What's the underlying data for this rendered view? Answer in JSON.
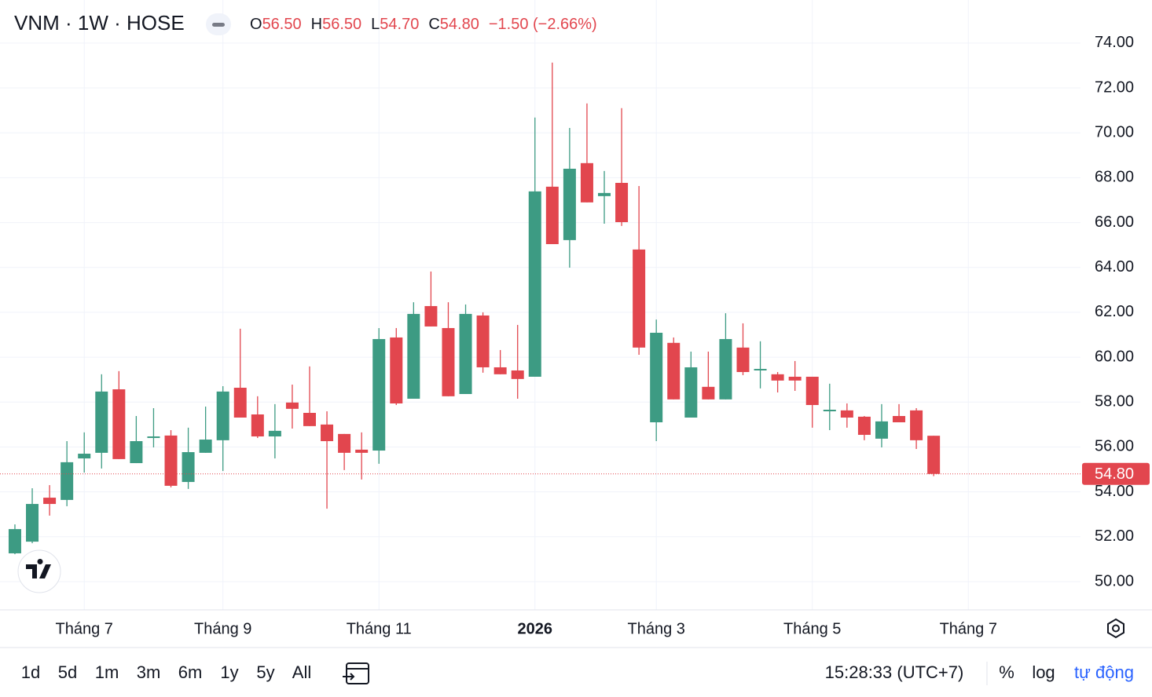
{
  "chart_data": {
    "type": "candlestick",
    "title": "VNM · 1W · HOSE",
    "ohlc_legend": [
      {
        "label": "O",
        "value": "56.50"
      },
      {
        "label": "H",
        "value": "56.50"
      },
      {
        "label": "L",
        "value": "54.70"
      },
      {
        "label": "C",
        "value": "54.80"
      }
    ],
    "change": "−1.50 (−2.66%)",
    "up_color": "#3d9b83",
    "down_color": "#e2464e",
    "open": [
      51.26,
      51.78,
      53.74,
      53.64,
      55.49,
      55.74,
      58.57,
      55.28,
      56.4,
      56.51,
      54.44,
      55.74,
      56.3,
      58.64,
      57.45,
      56.47,
      57.98,
      57.52,
      57.0,
      56.58,
      55.88,
      55.84,
      60.88,
      58.15,
      62.28,
      61.3,
      58.36,
      61.86,
      59.55,
      59.41,
      59.13,
      67.6,
      65.22,
      68.65,
      67.18,
      67.77,
      64.8,
      57.1,
      60.64,
      57.31,
      58.68,
      58.12,
      60.43,
      59.41,
      59.24,
      59.13,
      59.13,
      57.59,
      57.63,
      57.35,
      56.37,
      57.38,
      57.63,
      56.5
    ],
    "high": [
      52.55,
      54.16,
      54.3,
      56.26,
      56.65,
      59.24,
      59.38,
      57.38,
      57.73,
      56.75,
      56.86,
      57.8,
      58.71,
      61.27,
      58.26,
      57.91,
      58.78,
      59.59,
      57.59,
      56.58,
      56.65,
      61.3,
      61.3,
      62.45,
      63.82,
      62.45,
      62.35,
      62.0,
      60.32,
      61.44,
      70.68,
      73.13,
      70.22,
      71.31,
      68.3,
      71.1,
      67.63,
      61.68,
      60.88,
      60.25,
      60.25,
      61.96,
      61.51,
      60.71,
      59.34,
      59.83,
      59.13,
      58.82,
      57.94,
      57.38,
      57.91,
      57.91,
      57.73,
      56.5
    ],
    "low": [
      51.22,
      51.71,
      52.94,
      53.36,
      54.86,
      55.04,
      55.46,
      55.28,
      55.98,
      54.2,
      54.13,
      55.74,
      54.93,
      57.31,
      56.4,
      55.49,
      56.82,
      56.93,
      53.25,
      54.97,
      54.55,
      55.25,
      57.87,
      58.15,
      61.37,
      58.26,
      58.36,
      59.31,
      59.24,
      58.15,
      59.13,
      65.04,
      63.99,
      66.9,
      65.95,
      65.85,
      60.11,
      56.26,
      58.12,
      57.31,
      58.12,
      58.12,
      59.2,
      58.61,
      58.43,
      58.5,
      56.86,
      56.75,
      56.86,
      56.3,
      55.98,
      57.1,
      55.91,
      54.7
    ],
    "close": [
      52.34,
      53.46,
      53.46,
      55.32,
      55.7,
      58.47,
      55.46,
      56.26,
      56.47,
      54.27,
      55.77,
      56.33,
      58.47,
      57.31,
      56.47,
      56.72,
      57.7,
      56.93,
      56.26,
      55.74,
      55.74,
      60.81,
      57.94,
      61.93,
      61.37,
      58.26,
      61.93,
      59.55,
      59.24,
      59.03,
      67.39,
      65.04,
      68.4,
      66.9,
      67.32,
      66.02,
      60.43,
      61.09,
      58.12,
      59.55,
      58.12,
      60.81,
      59.34,
      59.48,
      58.96,
      58.96,
      57.87,
      57.66,
      57.31,
      56.54,
      57.14,
      57.1,
      56.3,
      54.8
    ],
    "xlim": [
      -0.86,
      61.47
    ],
    "xticks": [
      {
        "value": 4,
        "label": "Tháng 7"
      },
      {
        "value": 12,
        "label": "Tháng 9"
      },
      {
        "value": 21,
        "label": "Tháng 11"
      },
      {
        "value": 30,
        "label": "2026"
      },
      {
        "value": 37,
        "label": "Tháng 3"
      },
      {
        "value": 46,
        "label": "Tháng 5"
      },
      {
        "value": 55,
        "label": "Tháng 7"
      }
    ],
    "ylim": [
      48.74,
      75.92
    ],
    "yticks": [
      {
        "value": 50,
        "label": "50.00"
      },
      {
        "value": 52,
        "label": "52.00"
      },
      {
        "value": 54,
        "label": "54.00"
      },
      {
        "value": 56,
        "label": "56.00"
      },
      {
        "value": 58,
        "label": "58.00"
      },
      {
        "value": 60,
        "label": "60.00"
      },
      {
        "value": 62,
        "label": "62.00"
      },
      {
        "value": 64,
        "label": "64.00"
      },
      {
        "value": 66,
        "label": "66.00"
      },
      {
        "value": 68,
        "label": "68.00"
      },
      {
        "value": 70,
        "label": "70.00"
      },
      {
        "value": 72,
        "label": "72.00"
      },
      {
        "value": 74,
        "label": "74.00"
      }
    ],
    "grid": true,
    "last_price": {
      "value": 54.8,
      "label": "54.80"
    }
  },
  "toolbar": {
    "ranges": [
      "1d",
      "5d",
      "1m",
      "3m",
      "6m",
      "1y",
      "5y",
      "All"
    ],
    "time": "15:28:33 (UTC+7)",
    "options": [
      "%",
      "log",
      "tự động"
    ]
  }
}
